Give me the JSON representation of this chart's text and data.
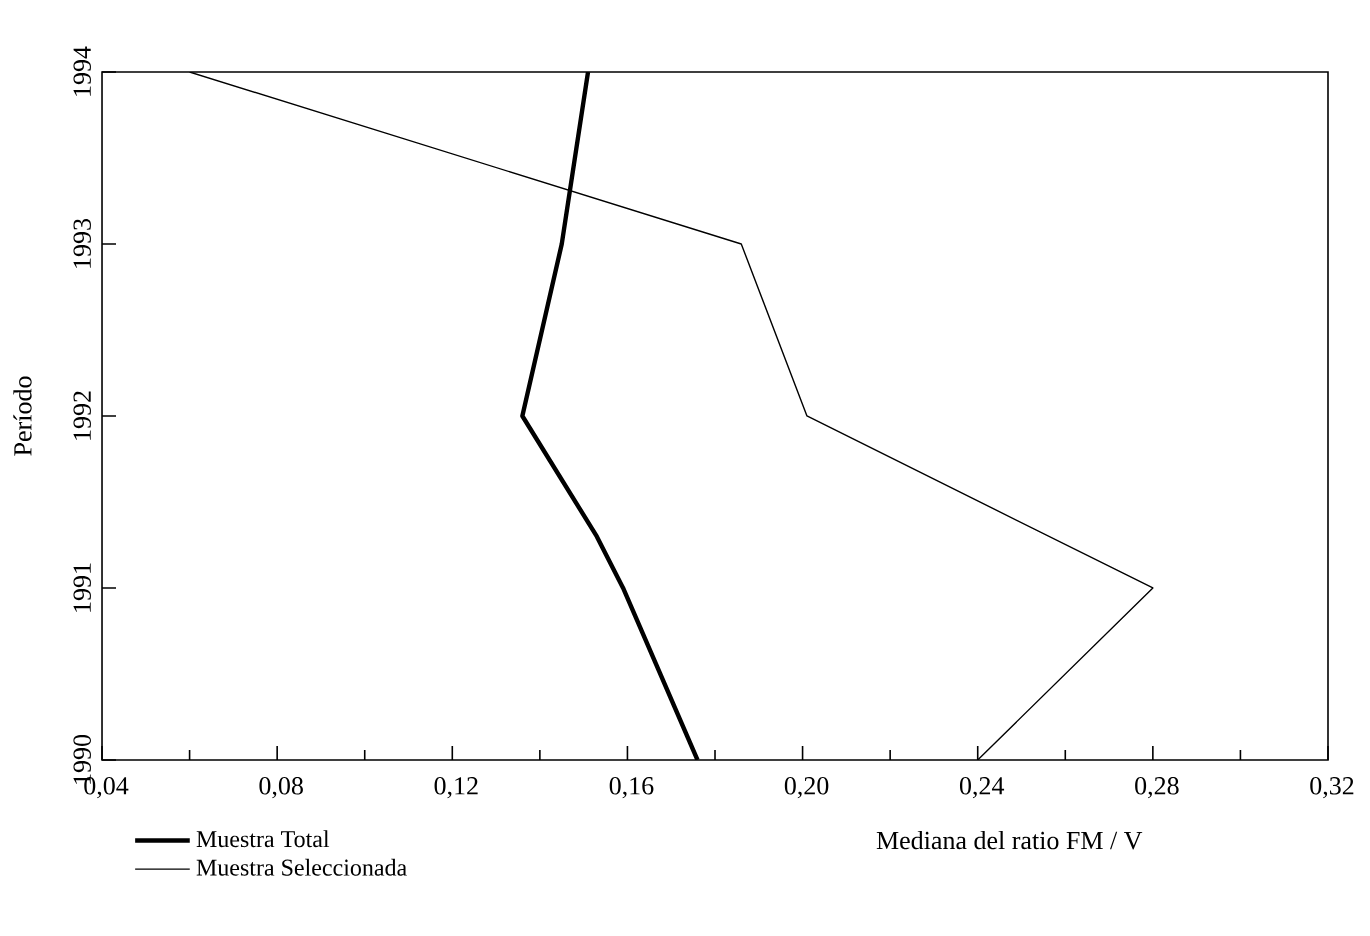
{
  "chart_data": {
    "type": "line",
    "xlabel": "Mediana del ratio FM / V",
    "ylabel": "Período",
    "xlim": [
      0.04,
      0.32
    ],
    "ylim": [
      1990,
      1994
    ],
    "xticks": [
      {
        "value": 0.04,
        "label": "0,04"
      },
      {
        "value": 0.08,
        "label": "0,08"
      },
      {
        "value": 0.12,
        "label": "0,12"
      },
      {
        "value": 0.16,
        "label": "0,16"
      },
      {
        "value": 0.2,
        "label": "0,20"
      },
      {
        "value": 0.24,
        "label": "0,24"
      },
      {
        "value": 0.28,
        "label": "0,28"
      },
      {
        "value": 0.32,
        "label": "0,32"
      }
    ],
    "yticks": [
      1990,
      1991,
      1992,
      1993,
      1994
    ],
    "legend": "bottom left",
    "grid": false,
    "marker": "none",
    "line_style": "solid",
    "series": [
      {
        "name": "Muestra Total",
        "color": "#000000",
        "x": [
          0.176,
          0.159,
          0.153,
          0.136,
          0.145,
          0.151
        ],
        "values": [
          1990,
          1991,
          1991.3,
          1992,
          1993,
          1994
        ]
      },
      {
        "name": "Muestra Seleccionada",
        "color": "#000000",
        "x": [
          0.24,
          0.28,
          0.201,
          0.186,
          0.06
        ],
        "values": [
          1990,
          1991,
          1992,
          1993,
          1994
        ]
      }
    ]
  }
}
